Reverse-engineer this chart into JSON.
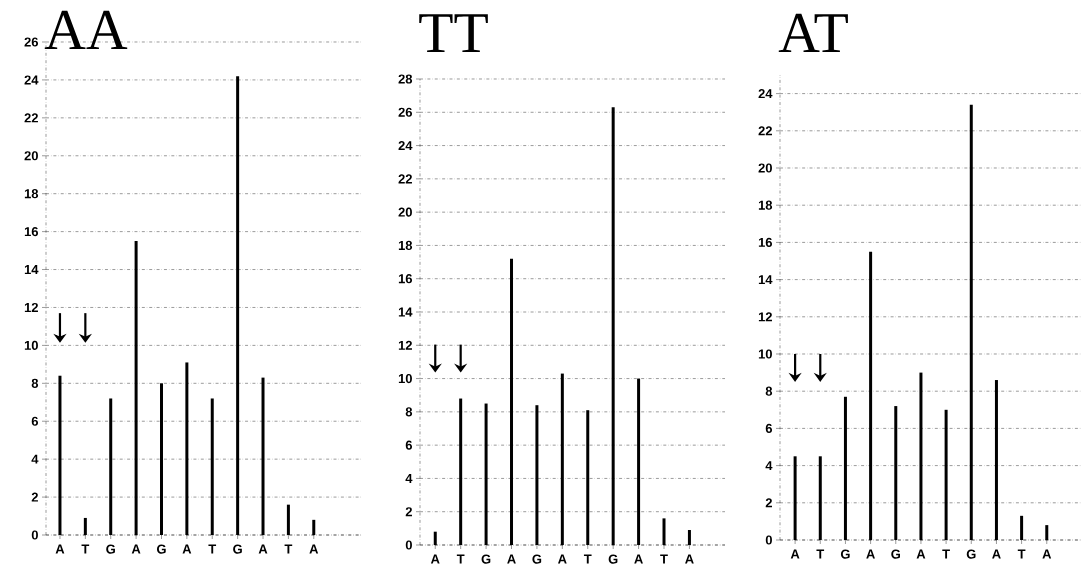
{
  "chart_data": [
    {
      "type": "bar",
      "title": "AA",
      "categories": [
        "A",
        "T",
        "G",
        "A",
        "G",
        "A",
        "T",
        "G",
        "A",
        "T",
        "A"
      ],
      "series": [
        {
          "color": "#000000",
          "values": [
            8.4,
            0.9,
            7.2,
            15.5,
            8.0,
            9.1,
            7.2,
            24.2,
            8.3,
            1.6,
            0.8
          ]
        }
      ],
      "ylim": [
        0,
        26
      ],
      "yticks": [
        0,
        2,
        4,
        6,
        8,
        10,
        12,
        14,
        16,
        18,
        20,
        22,
        24,
        26
      ],
      "grid": "y"
    },
    {
      "type": "bar",
      "title": "TT",
      "categories": [
        "A",
        "T",
        "G",
        "A",
        "G",
        "A",
        "T",
        "G",
        "A",
        "T",
        "A"
      ],
      "series": [
        {
          "color": "#000000",
          "values": [
            0.8,
            8.8,
            8.5,
            17.2,
            8.4,
            10.3,
            8.1,
            26.3,
            10.0,
            1.6,
            0.9
          ]
        }
      ],
      "ylim": [
        0,
        28
      ],
      "yticks": [
        0,
        2,
        4,
        6,
        8,
        10,
        12,
        14,
        16,
        18,
        20,
        22,
        24,
        26,
        28
      ],
      "grid": "y"
    },
    {
      "type": "bar",
      "title": "AT",
      "categories": [
        "A",
        "T",
        "G",
        "A",
        "G",
        "A",
        "T",
        "G",
        "A",
        "T",
        "A"
      ],
      "series": [
        {
          "color": "#000000",
          "values": [
            4.5,
            4.5,
            7.7,
            15.5,
            7.2,
            9.0,
            7.0,
            23.4,
            8.6,
            1.3,
            0.8
          ]
        }
      ],
      "ylim": [
        0,
        25
      ],
      "yticks": [
        0,
        2,
        4,
        6,
        8,
        10,
        12,
        14,
        16,
        18,
        20,
        22,
        24
      ],
      "grid": "y"
    }
  ]
}
